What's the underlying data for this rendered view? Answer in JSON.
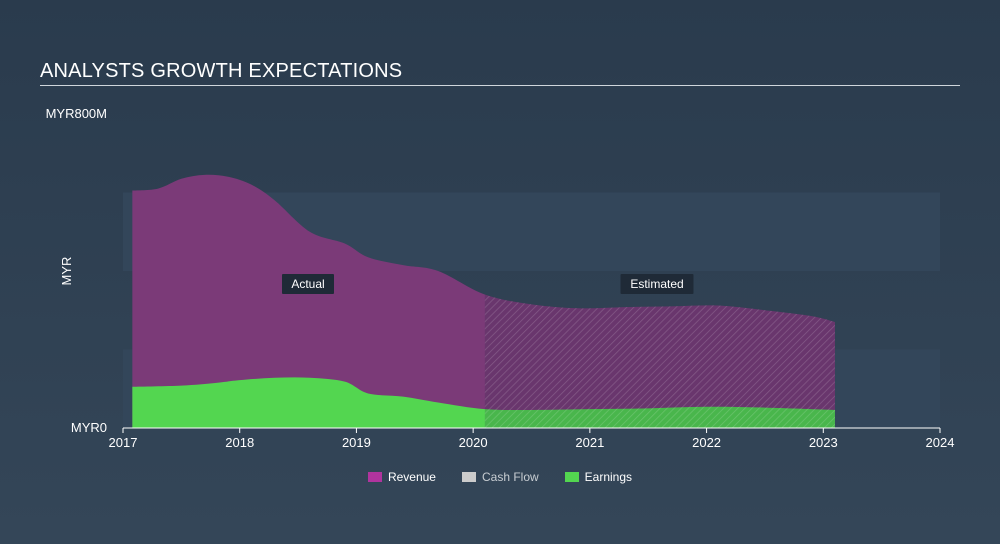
{
  "header": {
    "title": "ANALYSTS GROWTH EXPECTATIONS"
  },
  "colors": {
    "revenue": "#7b3a78",
    "revenue_legend": "#b0349e",
    "earnings": "#53d650",
    "cash_flow": "#cccccc",
    "band": "#33465a"
  },
  "chart_data": {
    "type": "area",
    "ylabel": "MYR",
    "y_ticks": [
      "MYR0",
      "MYR800M"
    ],
    "ylim": [
      0,
      800
    ],
    "xlim": [
      2017,
      2024
    ],
    "x_ticks": [
      "2017",
      "2018",
      "2019",
      "2020",
      "2021",
      "2022",
      "2023",
      "2024"
    ],
    "actual_label": "Actual",
    "estimated_label": "Estimated",
    "forecast_start": 2020.1,
    "series": [
      {
        "name": "Revenue",
        "x": [
          2017.08,
          2017.3,
          2017.5,
          2017.7,
          2017.9,
          2018.1,
          2018.3,
          2018.6,
          2018.9,
          2019.1,
          2019.4,
          2019.7,
          2020.1,
          2020.5,
          2020.9,
          2021.3,
          2021.7,
          2022.1,
          2022.5,
          2022.9,
          2023.1
        ],
        "values": [
          605,
          610,
          635,
          645,
          640,
          620,
          580,
          500,
          470,
          435,
          415,
          400,
          340,
          315,
          305,
          308,
          310,
          312,
          300,
          285,
          270
        ]
      },
      {
        "name": "Earnings",
        "x": [
          2017.08,
          2017.5,
          2017.8,
          2018.0,
          2018.3,
          2018.6,
          2018.9,
          2019.1,
          2019.4,
          2019.7,
          2020.1,
          2020.5,
          2021.0,
          2021.5,
          2022.0,
          2022.5,
          2023.1
        ],
        "values": [
          105,
          108,
          115,
          122,
          128,
          128,
          118,
          88,
          80,
          65,
          48,
          46,
          48,
          50,
          54,
          52,
          46
        ]
      },
      {
        "name": "Cash Flow",
        "x": [],
        "values": []
      }
    ],
    "legend": [
      "Revenue",
      "Cash Flow",
      "Earnings"
    ]
  }
}
